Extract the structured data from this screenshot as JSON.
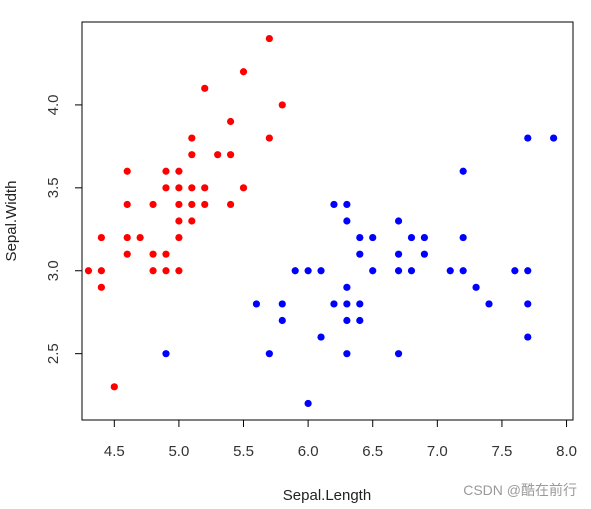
{
  "chart_data": {
    "type": "scatter",
    "title": "",
    "xlabel": "Sepal.Length",
    "ylabel": "Sepal.Width",
    "xlim": [
      4.25,
      8.05
    ],
    "ylim": [
      2.1,
      4.5
    ],
    "xticks": [
      {
        "value": 4.5,
        "label": "4.5"
      },
      {
        "value": 5.0,
        "label": "5.0"
      },
      {
        "value": 5.5,
        "label": "5.5"
      },
      {
        "value": 6.0,
        "label": "6.0"
      },
      {
        "value": 6.5,
        "label": "6.5"
      },
      {
        "value": 7.0,
        "label": "7.0"
      },
      {
        "value": 7.5,
        "label": "7.5"
      },
      {
        "value": 8.0,
        "label": "8.0"
      }
    ],
    "yticks": [
      {
        "value": 2.5,
        "label": "2.5"
      },
      {
        "value": 3.0,
        "label": "3.0"
      },
      {
        "value": 3.5,
        "label": "3.5"
      },
      {
        "value": 4.0,
        "label": "4.0"
      }
    ],
    "grid": false,
    "series": [
      {
        "color": "#ff0000",
        "points": [
          [
            5.7,
            4.4
          ],
          [
            5.5,
            4.2
          ],
          [
            5.2,
            4.1
          ],
          [
            5.8,
            4.0
          ],
          [
            5.4,
            3.9
          ],
          [
            5.1,
            3.8
          ],
          [
            5.7,
            3.8
          ],
          [
            5.1,
            3.7
          ],
          [
            5.3,
            3.7
          ],
          [
            5.4,
            3.7
          ],
          [
            4.6,
            3.6
          ],
          [
            4.9,
            3.6
          ],
          [
            5.0,
            3.6
          ],
          [
            4.9,
            3.5
          ],
          [
            5.0,
            3.5
          ],
          [
            5.1,
            3.5
          ],
          [
            5.2,
            3.5
          ],
          [
            5.5,
            3.5
          ],
          [
            4.6,
            3.4
          ],
          [
            4.8,
            3.4
          ],
          [
            5.0,
            3.4
          ],
          [
            5.1,
            3.4
          ],
          [
            5.2,
            3.4
          ],
          [
            5.4,
            3.4
          ],
          [
            5.0,
            3.3
          ],
          [
            5.1,
            3.3
          ],
          [
            4.4,
            3.2
          ],
          [
            4.6,
            3.2
          ],
          [
            4.7,
            3.2
          ],
          [
            5.0,
            3.2
          ],
          [
            4.6,
            3.1
          ],
          [
            4.8,
            3.1
          ],
          [
            4.9,
            3.1
          ],
          [
            4.3,
            3.0
          ],
          [
            4.4,
            3.0
          ],
          [
            4.8,
            3.0
          ],
          [
            4.9,
            3.0
          ],
          [
            5.0,
            3.0
          ],
          [
            4.4,
            2.9
          ],
          [
            4.5,
            2.3
          ]
        ]
      },
      {
        "color": "#0000ff",
        "points": [
          [
            7.7,
            3.8
          ],
          [
            7.9,
            3.8
          ],
          [
            7.2,
            3.6
          ],
          [
            6.2,
            3.4
          ],
          [
            6.3,
            3.4
          ],
          [
            6.3,
            3.3
          ],
          [
            6.7,
            3.3
          ],
          [
            6.4,
            3.2
          ],
          [
            6.5,
            3.2
          ],
          [
            6.8,
            3.2
          ],
          [
            6.9,
            3.2
          ],
          [
            7.2,
            3.2
          ],
          [
            6.4,
            3.1
          ],
          [
            6.7,
            3.1
          ],
          [
            6.9,
            3.1
          ],
          [
            5.9,
            3.0
          ],
          [
            6.0,
            3.0
          ],
          [
            6.1,
            3.0
          ],
          [
            6.5,
            3.0
          ],
          [
            6.7,
            3.0
          ],
          [
            6.8,
            3.0
          ],
          [
            7.1,
            3.0
          ],
          [
            7.2,
            3.0
          ],
          [
            7.6,
            3.0
          ],
          [
            7.7,
            3.0
          ],
          [
            6.3,
            2.9
          ],
          [
            7.3,
            2.9
          ],
          [
            5.6,
            2.8
          ],
          [
            5.8,
            2.8
          ],
          [
            6.2,
            2.8
          ],
          [
            6.3,
            2.8
          ],
          [
            6.4,
            2.8
          ],
          [
            7.4,
            2.8
          ],
          [
            7.7,
            2.8
          ],
          [
            5.8,
            2.7
          ],
          [
            6.3,
            2.7
          ],
          [
            6.4,
            2.7
          ],
          [
            6.1,
            2.6
          ],
          [
            7.7,
            2.6
          ],
          [
            4.9,
            2.5
          ],
          [
            5.7,
            2.5
          ],
          [
            6.3,
            2.5
          ],
          [
            6.7,
            2.5
          ],
          [
            6.0,
            2.2
          ]
        ]
      }
    ]
  },
  "watermark": "CSDN @酷在前行"
}
